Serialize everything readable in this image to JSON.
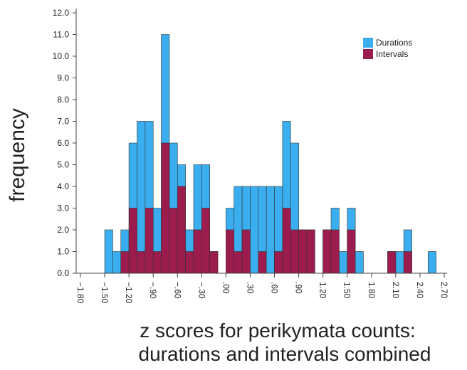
{
  "chart_data": {
    "type": "histogram",
    "x_label": [
      "z scores for perikymata counts:",
      "durations and intervals combined"
    ],
    "y_label": "frequency",
    "bins": [
      -1.5,
      -1.4,
      -1.3,
      -1.2,
      -1.1,
      -1.0,
      -0.9,
      -0.8,
      -0.7,
      -0.6,
      -0.5,
      -0.4,
      -0.3,
      -0.2,
      -0.1,
      0.0,
      0.1,
      0.2,
      0.3,
      0.4,
      0.5,
      0.6,
      0.7,
      0.8,
      0.9,
      1.0,
      1.1,
      1.2,
      1.3,
      1.4,
      1.5,
      1.6,
      1.7,
      1.8,
      1.9,
      2.0,
      2.1,
      2.2,
      2.3,
      2.4,
      2.5,
      2.6
    ],
    "series": [
      {
        "name": "Durations",
        "color": "#3aaeee",
        "values": [
          2,
          1,
          2,
          6,
          7,
          7,
          3,
          11,
          6,
          5,
          2,
          5,
          5,
          1,
          0,
          3,
          4,
          4,
          4,
          4,
          4,
          4,
          7,
          6,
          2,
          2,
          0,
          2,
          3,
          1,
          3,
          1,
          0,
          0,
          0,
          1,
          1,
          2,
          0,
          0,
          1
        ]
      },
      {
        "name": "Intervals",
        "color": "#9c1c4e",
        "values": [
          0,
          0,
          1,
          3,
          1,
          3,
          1,
          6,
          3,
          4,
          1,
          2,
          3,
          1,
          0,
          2,
          1,
          2,
          0,
          1,
          0,
          1,
          3,
          2,
          2,
          2,
          0,
          2,
          2,
          0,
          2,
          0,
          0,
          0,
          0,
          1,
          0,
          1,
          0,
          0,
          0
        ]
      }
    ],
    "xlim": [
      -1.8,
      2.7
    ],
    "xticks": [
      {
        "value": -1.8,
        "label": "−1.80"
      },
      {
        "value": -1.5,
        "label": "−1.50"
      },
      {
        "value": -1.2,
        "label": "−1.20"
      },
      {
        "value": -0.9,
        "label": "−.90"
      },
      {
        "value": -0.6,
        "label": "−.60"
      },
      {
        "value": -0.3,
        "label": "−.30"
      },
      {
        "value": 0,
        "label": ".00"
      },
      {
        "value": 0.3,
        "label": ".30"
      },
      {
        "value": 0.6,
        "label": ".60"
      },
      {
        "value": 0.9,
        "label": ".90"
      },
      {
        "value": 1.2,
        "label": "1.20"
      },
      {
        "value": 1.5,
        "label": "1.50"
      },
      {
        "value": 1.8,
        "label": "1.80"
      },
      {
        "value": 2.1,
        "label": "2.10"
      },
      {
        "value": 2.4,
        "label": "2.40"
      },
      {
        "value": 2.7,
        "label": "2.70"
      }
    ],
    "ylim": [
      0,
      12
    ],
    "yticks": [
      {
        "value": 0,
        "label": "0.0"
      },
      {
        "value": 1,
        "label": "1.0"
      },
      {
        "value": 2,
        "label": "2.0"
      },
      {
        "value": 3,
        "label": "3.0"
      },
      {
        "value": 4,
        "label": "4.0"
      },
      {
        "value": 5,
        "label": "5.0"
      },
      {
        "value": 6,
        "label": "6.0"
      },
      {
        "value": 7,
        "label": "7.0"
      },
      {
        "value": 8,
        "label": "8.0"
      },
      {
        "value": 9,
        "label": "9.0"
      },
      {
        "value": 10,
        "label": "10.0"
      },
      {
        "value": 11,
        "label": "11.0"
      },
      {
        "value": 12,
        "label": "12.0"
      }
    ],
    "legend": "upper right"
  }
}
